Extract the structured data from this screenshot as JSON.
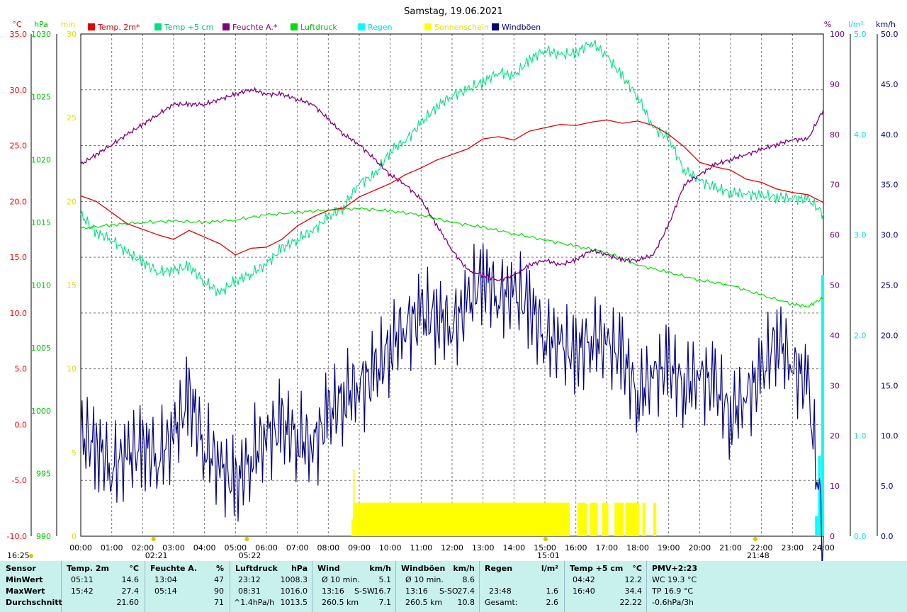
{
  "chart_data": {
    "type": "line",
    "title": "Samstag, 19.06.2021",
    "x": [
      "00:00",
      "01:00",
      "02:00",
      "03:00",
      "04:00",
      "05:00",
      "06:00",
      "07:00",
      "08:00",
      "09:00",
      "10:00",
      "11:00",
      "12:00",
      "13:00",
      "14:00",
      "15:00",
      "16:00",
      "17:00",
      "18:00",
      "19:00",
      "20:00",
      "21:00",
      "22:00",
      "23:00",
      "24:00"
    ],
    "axes": {
      "temp": {
        "unit": "°C",
        "range": [
          -10,
          35
        ],
        "ticks": [
          "35.0",
          "30.0",
          "25.0",
          "20.0",
          "15.0",
          "10.0",
          "5.0",
          "0.0",
          "-5.0",
          "-10.0"
        ],
        "color": "#ff0000"
      },
      "pressure": {
        "unit": "hPa",
        "range": [
          990,
          1030
        ],
        "ticks": [
          "1030",
          "1025",
          "1020",
          "1015",
          "1010",
          "1005",
          "1000",
          "995",
          "990"
        ],
        "color": "#00c000"
      },
      "sunshine": {
        "unit": "min",
        "range": [
          0,
          30
        ],
        "ticks": [
          "30",
          "25",
          "20",
          "15",
          "10",
          "5",
          "0"
        ],
        "color": "#e0e000"
      },
      "humidity": {
        "unit": "%",
        "range": [
          0,
          100
        ],
        "ticks": [
          "100",
          "90",
          "80",
          "70",
          "60",
          "50",
          "40",
          "30",
          "20",
          "10",
          "0"
        ],
        "color": "#800080"
      },
      "rain": {
        "unit": "l/m²",
        "range": [
          0,
          5
        ],
        "ticks": [
          "5.0",
          "4.0",
          "3.0",
          "2.0",
          "1.0",
          "0.0"
        ],
        "color": "#00e0e0"
      },
      "wind": {
        "unit": "km/h",
        "range": [
          0,
          50
        ],
        "ticks": [
          "50.0",
          "45.0",
          "40.0",
          "35.0",
          "30.0",
          "25.0",
          "20.0",
          "15.0",
          "10.0",
          "5.0",
          "0.0"
        ],
        "color": "#000080"
      }
    },
    "legend": [
      {
        "name": "Temp. 2m*",
        "color": "#e00000",
        "text_color": "#e00000"
      },
      {
        "name": "Temp +5 cm",
        "color": "#00e080",
        "text_color": "#00c070"
      },
      {
        "name": "Feuchte A.*",
        "color": "#800080",
        "text_color": "#800080"
      },
      {
        "name": "Luftdruck",
        "color": "#00e000",
        "text_color": "#00c000"
      },
      {
        "name": "Regen",
        "color": "#00ffff",
        "text_color": "#00e0e0"
      },
      {
        "name": "Sonnenschein",
        "color": "#ffff00",
        "text_color": "#e0e000"
      },
      {
        "name": "Windböen",
        "color": "#000080",
        "text_color": "#000080"
      }
    ],
    "series": [
      {
        "name": "Temp. 2m*",
        "axis": "temp",
        "x": [
          0,
          0.5,
          1,
          1.5,
          2,
          2.5,
          3,
          3.5,
          4,
          4.5,
          5,
          5.5,
          6,
          6.5,
          7,
          7.5,
          8,
          8.5,
          9,
          9.5,
          10,
          10.5,
          11,
          11.5,
          12,
          12.5,
          13,
          13.5,
          14,
          14.5,
          15,
          15.5,
          16,
          16.5,
          17,
          17.5,
          18,
          18.5,
          19,
          19.5,
          20,
          20.5,
          21,
          21.5,
          22,
          22.5,
          23,
          23.5,
          24
        ],
        "values": [
          20.5,
          20.0,
          19.0,
          18.0,
          17.5,
          17.0,
          16.6,
          17.4,
          16.8,
          16.2,
          15.2,
          15.8,
          15.9,
          16.6,
          17.8,
          18.6,
          19.2,
          19.4,
          20.4,
          21.0,
          21.6,
          22.4,
          23.0,
          23.7,
          24.2,
          24.7,
          25.6,
          25.8,
          25.5,
          26.3,
          26.6,
          26.9,
          26.8,
          27.1,
          27.3,
          27.0,
          27.2,
          26.8,
          26.0,
          24.9,
          23.5,
          23.1,
          22.8,
          22.0,
          21.7,
          21.1,
          20.8,
          20.6,
          19.9
        ]
      },
      {
        "name": "Temp +5 cm",
        "axis": "temp",
        "x": [
          0,
          0.5,
          1,
          1.5,
          2,
          2.5,
          3,
          3.5,
          4,
          4.5,
          5,
          5.5,
          6,
          6.5,
          7,
          7.5,
          8,
          8.5,
          9,
          9.5,
          10,
          10.5,
          11,
          11.5,
          12,
          12.5,
          13,
          13.5,
          14,
          14.5,
          15,
          15.5,
          16,
          16.5,
          17,
          17.5,
          18,
          18.5,
          19,
          19.5,
          20,
          20.5,
          21,
          21.5,
          22,
          22.5,
          23,
          23.5,
          24
        ],
        "values": [
          18.8,
          17.2,
          16.6,
          15.4,
          14.6,
          13.7,
          13.8,
          14.2,
          12.8,
          11.8,
          12.9,
          13.5,
          14.4,
          15.8,
          16.6,
          17.4,
          18.6,
          19.5,
          21.7,
          22.3,
          24.5,
          25.5,
          27.0,
          28.5,
          29.5,
          30.0,
          30.7,
          31.6,
          31.2,
          32.7,
          33.6,
          33.1,
          33.3,
          34.3,
          33.0,
          31.2,
          29.4,
          26.6,
          25.7,
          22.8,
          21.9,
          21.2,
          20.8,
          20.7,
          20.5,
          20.4,
          20.3,
          20.2,
          18.9
        ]
      },
      {
        "name": "Feuchte A.*",
        "axis": "humidity",
        "x": [
          0,
          0.5,
          1,
          1.5,
          2,
          2.5,
          3,
          3.5,
          4,
          4.5,
          5,
          5.5,
          6,
          6.5,
          7,
          7.5,
          8,
          8.5,
          9,
          9.5,
          10,
          10.5,
          11,
          11.5,
          12,
          12.5,
          13,
          13.5,
          14,
          14.5,
          15,
          15.5,
          16,
          16.5,
          17,
          17.5,
          18,
          18.5,
          19,
          19.5,
          20,
          20.5,
          21,
          21.5,
          22,
          22.5,
          23,
          23.5,
          24
        ],
        "values": [
          74,
          76,
          78,
          80,
          82,
          84,
          86,
          86,
          86,
          87,
          88,
          89,
          88,
          88,
          87,
          86,
          83,
          80,
          78,
          75,
          72,
          70,
          67,
          62,
          57,
          53,
          52,
          51,
          52,
          54,
          55,
          54,
          55,
          57,
          56,
          55,
          55,
          56,
          62,
          70,
          72,
          74,
          75,
          76,
          77,
          78,
          79,
          79,
          85
        ]
      },
      {
        "name": "Luftdruck",
        "axis": "pressure",
        "x": [
          0,
          1,
          2,
          3,
          4,
          5,
          6,
          7,
          8,
          9,
          10,
          11,
          12,
          13,
          14,
          15,
          16,
          17,
          18,
          19,
          20,
          21,
          22,
          23,
          23.5,
          24
        ],
        "values": [
          1014.5,
          1014.8,
          1015.0,
          1015.1,
          1015.0,
          1015.2,
          1015.6,
          1015.8,
          1016.0,
          1016.1,
          1015.9,
          1015.6,
          1015.0,
          1014.6,
          1014.1,
          1013.6,
          1013.1,
          1012.6,
          1011.6,
          1011.0,
          1010.4,
          1010.0,
          1009.2,
          1008.5,
          1008.3,
          1009.0
        ]
      },
      {
        "name": "Windböen",
        "axis": "wind",
        "x": [
          0,
          0.5,
          1,
          1.5,
          2,
          2.5,
          3,
          3.5,
          4,
          4.5,
          5,
          5.5,
          6,
          6.5,
          7,
          7.5,
          8,
          8.5,
          9,
          9.5,
          10,
          10.5,
          11,
          11.5,
          12,
          12.5,
          13,
          13.5,
          14,
          14.5,
          15,
          15.5,
          16,
          16.5,
          17,
          17.5,
          18,
          18.5,
          19,
          19.5,
          20,
          20.5,
          21,
          21.5,
          22,
          22.5,
          23,
          23.5,
          24
        ],
        "values": [
          10,
          9,
          7,
          8,
          9,
          8,
          10,
          14,
          9,
          7,
          5,
          8,
          10,
          11,
          10,
          9,
          12,
          14,
          15,
          16,
          19,
          21,
          22,
          22,
          21,
          23,
          26,
          24,
          24,
          23,
          20,
          19,
          18,
          20,
          19,
          18,
          14,
          16,
          17,
          15,
          16,
          15,
          12,
          14,
          16,
          20,
          17,
          15,
          0
        ]
      },
      {
        "name": "Sonnenschein",
        "axis": "sunshine",
        "x": [
          8.75,
          8.8,
          8.85,
          15.75,
          15.8,
          16.05,
          16.35,
          16.45,
          16.7,
          16.85,
          17.05,
          17.25,
          17.55,
          17.6,
          18.05,
          18.15,
          18.25,
          18.5,
          18.6,
          18.75
        ],
        "values": [
          1,
          4,
          2,
          2,
          0,
          2,
          0,
          2,
          0,
          2,
          0,
          2,
          0,
          2,
          0,
          2,
          0,
          2,
          0,
          2
        ]
      },
      {
        "name": "Regen",
        "axis": "rain",
        "x": [
          23.8,
          23.9,
          24
        ],
        "values": [
          0.2,
          0.8,
          2.6
        ]
      }
    ],
    "markers": [
      {
        "label": "02:21",
        "x": 2.35
      },
      {
        "label": "05:22",
        "x": 5.37
      },
      {
        "label": "15:01",
        "x": 15.02
      },
      {
        "label": "21:48",
        "x": 21.8
      },
      {
        "label": "16:25",
        "x": -1
      }
    ],
    "grid": true
  },
  "stats": {
    "sensor": {
      "head": "Sensor",
      "rows": [
        "MinWert",
        "MaxWert",
        "Durchschnitt"
      ]
    },
    "temp2m": {
      "head": "Temp. 2m",
      "unit": "°C",
      "rows": [
        [
          "05:11",
          "14.6"
        ],
        [
          "15:42",
          "27.4"
        ],
        [
          "",
          "21.60"
        ]
      ]
    },
    "humidity": {
      "head": "Feuchte A.",
      "unit": "%",
      "rows": [
        [
          "13:04",
          "47"
        ],
        [
          "05:14",
          "90"
        ],
        [
          "",
          "71"
        ]
      ]
    },
    "pressure": {
      "head": "Luftdruck",
      "unit": "hPa",
      "rows": [
        [
          "23:12",
          "1008.3"
        ],
        [
          "08:31",
          "1016.0"
        ],
        [
          "^1.4hPa/h",
          "1013.5"
        ]
      ]
    },
    "wind": {
      "head": "Wind",
      "unit": "km/h",
      "rows": [
        [
          "Ø 10 min.",
          "",
          "5.1"
        ],
        [
          "13:16",
          "S-SW",
          "16.7"
        ],
        [
          "260.5 km",
          "",
          "7.1"
        ]
      ]
    },
    "gusts": {
      "head": "Windböen",
      "unit": "km/h",
      "rows": [
        [
          "Ø 10 min.",
          "",
          "8.6"
        ],
        [
          "13:16",
          "S-SO",
          "27.4"
        ],
        [
          "260.5 km",
          "",
          "10.8"
        ]
      ]
    },
    "rain": {
      "head": "Regen",
      "unit": "l/m²",
      "rows": [
        [
          "",
          ""
        ],
        [
          "23:48",
          "1.6"
        ],
        [
          "Gesamt:",
          "2.6"
        ]
      ]
    },
    "temp5cm": {
      "head": "Temp +5 cm",
      "unit": "°C",
      "rows": [
        [
          "04:42",
          "12.2"
        ],
        [
          "16:40",
          "34.4"
        ],
        [
          "",
          "22.22"
        ]
      ]
    },
    "pmv": {
      "head": "PMV+2:23",
      "rows": [
        "WC 19.3 °C",
        "TP 16.9 °C",
        "-0.6hPa/3h"
      ]
    }
  }
}
